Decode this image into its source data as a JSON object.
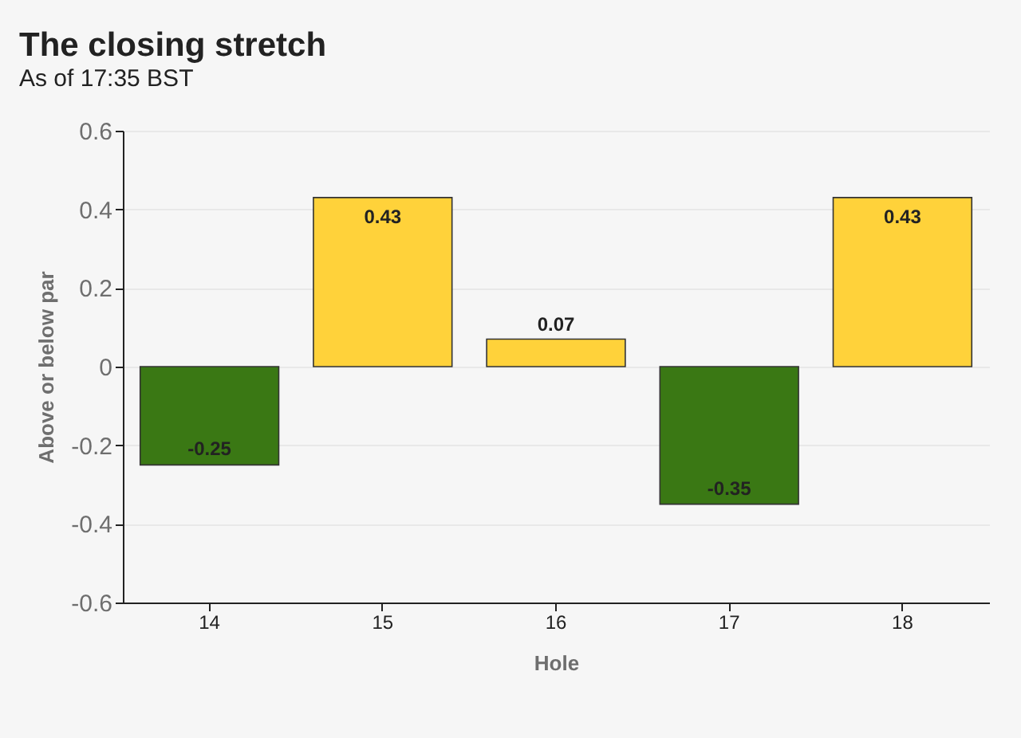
{
  "chart_data": {
    "type": "bar",
    "title": "The closing stretch",
    "subtitle": "As of 17:35 BST",
    "xlabel": "Hole",
    "ylabel": "Above or below par",
    "categories": [
      "14",
      "15",
      "16",
      "17",
      "18"
    ],
    "values": [
      -0.25,
      0.43,
      0.07,
      -0.35,
      0.43
    ],
    "colors": [
      "#3a7814",
      "#ffd23a",
      "#ffd23a",
      "#3a7814",
      "#ffd23a"
    ],
    "ylim": [
      -0.6,
      0.6
    ],
    "yticks": [
      -0.6,
      -0.4,
      -0.2,
      0,
      0.2,
      0.4,
      0.6
    ],
    "grid": "y",
    "data_labels": true
  }
}
